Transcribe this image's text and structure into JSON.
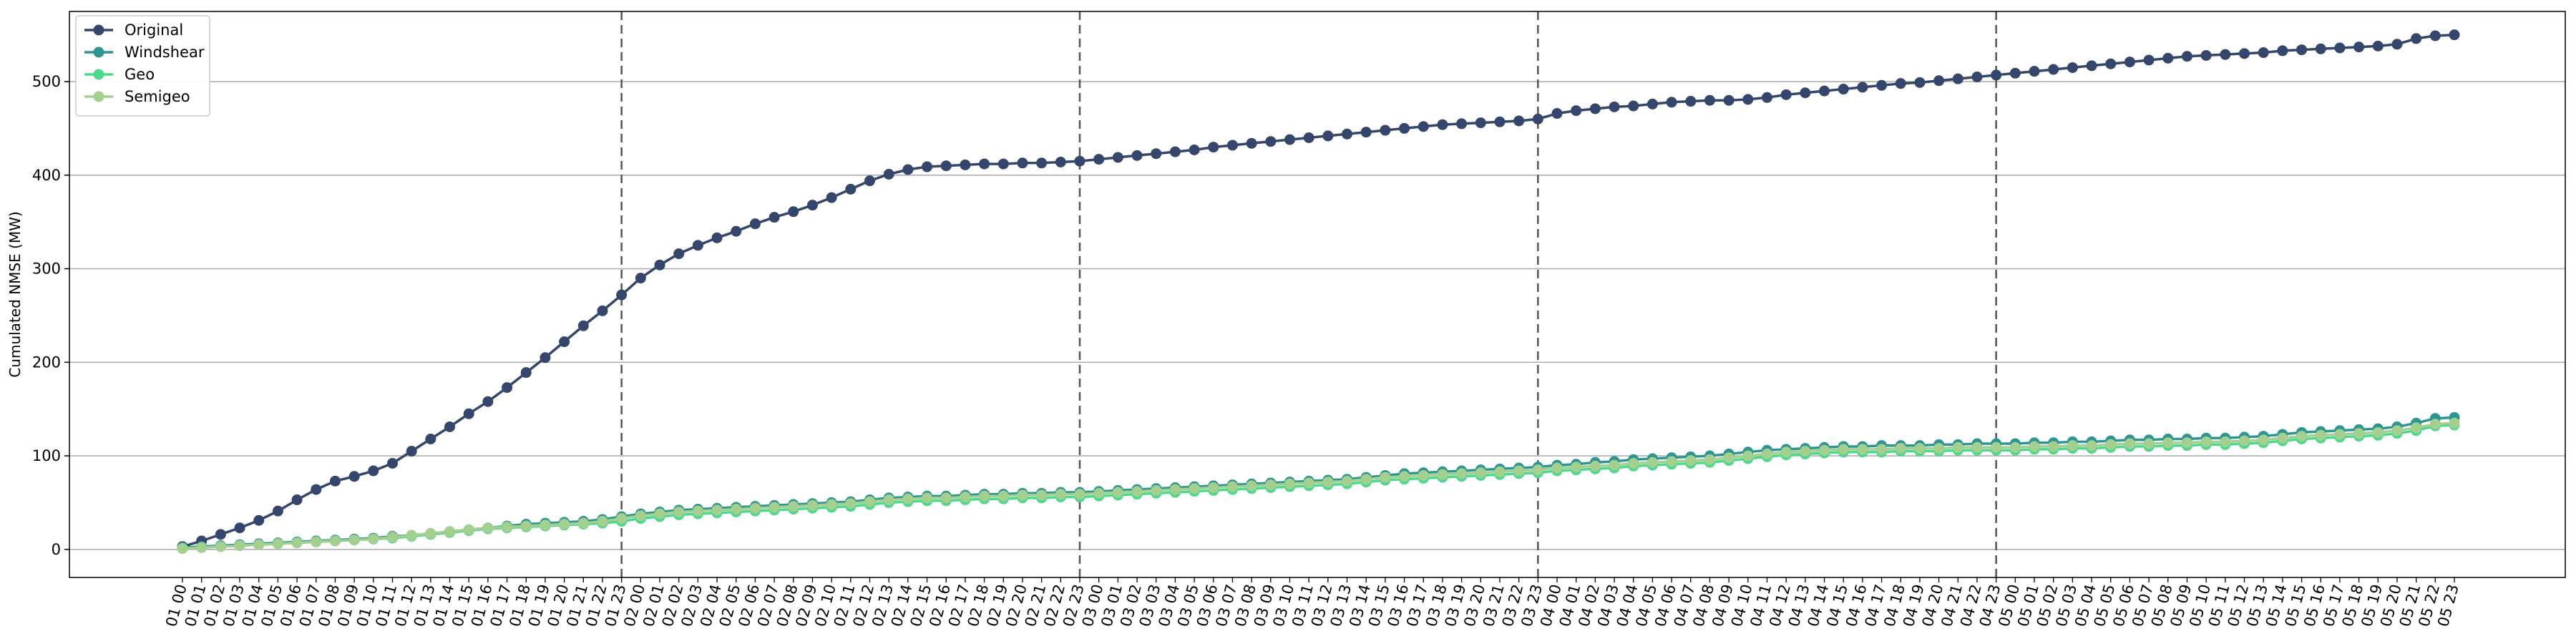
{
  "chart_data": {
    "type": "line",
    "title": "",
    "xlabel": "",
    "ylabel": "Cumulated NMSE (MW)",
    "ylim": [
      -30,
      575
    ],
    "yticks": [
      0,
      100,
      200,
      300,
      400,
      500
    ],
    "grid": "horizontal",
    "legend_position": "top-left",
    "day_separators_after": [
      "01 23",
      "02 23",
      "03 23",
      "04 23"
    ],
    "categories": [
      "01 00",
      "01 01",
      "01 02",
      "01 03",
      "01 04",
      "01 05",
      "01 06",
      "01 07",
      "01 08",
      "01 09",
      "01 10",
      "01 11",
      "01 12",
      "01 13",
      "01 14",
      "01 15",
      "01 16",
      "01 17",
      "01 18",
      "01 19",
      "01 20",
      "01 21",
      "01 22",
      "01 23",
      "02 00",
      "02 01",
      "02 02",
      "02 03",
      "02 04",
      "02 05",
      "02 06",
      "02 07",
      "02 08",
      "02 09",
      "02 10",
      "02 11",
      "02 12",
      "02 13",
      "02 14",
      "02 15",
      "02 16",
      "02 17",
      "02 18",
      "02 19",
      "02 20",
      "02 21",
      "02 22",
      "02 23",
      "03 00",
      "03 01",
      "03 02",
      "03 03",
      "03 04",
      "03 05",
      "03 06",
      "03 07",
      "03 08",
      "03 09",
      "03 10",
      "03 11",
      "03 12",
      "03 13",
      "03 14",
      "03 15",
      "03 16",
      "03 17",
      "03 18",
      "03 19",
      "03 20",
      "03 21",
      "03 22",
      "03 23",
      "04 00",
      "04 01",
      "04 02",
      "04 03",
      "04 04",
      "04 05",
      "04 06",
      "04 07",
      "04 08",
      "04 09",
      "04 10",
      "04 11",
      "04 12",
      "04 13",
      "04 14",
      "04 15",
      "04 16",
      "04 17",
      "04 18",
      "04 19",
      "04 20",
      "04 21",
      "04 22",
      "04 23",
      "05 00",
      "05 01",
      "05 02",
      "05 03",
      "05 04",
      "05 05",
      "05 06",
      "05 07",
      "05 08",
      "05 09",
      "05 10",
      "05 11",
      "05 12",
      "05 13",
      "05 14",
      "05 15",
      "05 16",
      "05 17",
      "05 18",
      "05 19",
      "05 20",
      "05 21",
      "05 22",
      "05 23"
    ],
    "series": [
      {
        "name": "Original",
        "color": "#34466b",
        "values": [
          3,
          9,
          16,
          23,
          31,
          41,
          53,
          64,
          73,
          78,
          84,
          92,
          105,
          118,
          131,
          145,
          158,
          173,
          189,
          205,
          222,
          239,
          255,
          272,
          290,
          304,
          316,
          325,
          333,
          340,
          348,
          355,
          361,
          368,
          376,
          385,
          394,
          401,
          406,
          409,
          410,
          411,
          412,
          412,
          413,
          413,
          414,
          415,
          417,
          419,
          421,
          423,
          425,
          427,
          430,
          432,
          434,
          436,
          438,
          440,
          442,
          444,
          446,
          448,
          450,
          452,
          454,
          455,
          456,
          457,
          458,
          460,
          466,
          469,
          471,
          473,
          474,
          476,
          478,
          479,
          480,
          480,
          481,
          483,
          486,
          488,
          490,
          492,
          494,
          496,
          498,
          499,
          501,
          503,
          505,
          507,
          509,
          511,
          513,
          515,
          517,
          519,
          521,
          523,
          525,
          527,
          528,
          529,
          530,
          531,
          533,
          534,
          535,
          536,
          537,
          538,
          540,
          546,
          549,
          550
        ]
      },
      {
        "name": "Windshear",
        "color": "#2e9692",
        "values": [
          2,
          3,
          4,
          5,
          6,
          7,
          8,
          9,
          10,
          11,
          12,
          14,
          15,
          17,
          19,
          21,
          23,
          25,
          27,
          28,
          29,
          30,
          32,
          35,
          38,
          40,
          42,
          43,
          44,
          45,
          46,
          47,
          48,
          49,
          50,
          51,
          53,
          55,
          56,
          57,
          57,
          58,
          59,
          59,
          60,
          60,
          61,
          61,
          62,
          63,
          64,
          65,
          66,
          67,
          68,
          69,
          70,
          71,
          72,
          73,
          74,
          75,
          77,
          79,
          81,
          82,
          83,
          84,
          85,
          86,
          87,
          88,
          90,
          91,
          93,
          94,
          96,
          97,
          98,
          99,
          100,
          102,
          104,
          106,
          107,
          108,
          109,
          110,
          110,
          111,
          111,
          111,
          112,
          112,
          113,
          113,
          113,
          114,
          114,
          115,
          115,
          116,
          117,
          117,
          118,
          118,
          119,
          119,
          120,
          121,
          123,
          125,
          126,
          127,
          128,
          129,
          131,
          135,
          140,
          141
        ]
      },
      {
        "name": "Geo",
        "color": "#4dd98c",
        "values": [
          1,
          2,
          3,
          4,
          5,
          6,
          7,
          8,
          9,
          10,
          11,
          12,
          14,
          16,
          18,
          20,
          22,
          23,
          24,
          25,
          26,
          27,
          28,
          30,
          33,
          35,
          37,
          38,
          39,
          40,
          41,
          42,
          43,
          44,
          45,
          46,
          48,
          50,
          51,
          52,
          52,
          53,
          54,
          54,
          55,
          55,
          56,
          56,
          57,
          58,
          59,
          60,
          61,
          62,
          63,
          64,
          65,
          66,
          67,
          68,
          69,
          70,
          72,
          74,
          75,
          76,
          77,
          78,
          79,
          80,
          81,
          82,
          84,
          85,
          86,
          87,
          89,
          90,
          91,
          92,
          93,
          95,
          97,
          99,
          101,
          102,
          103,
          104,
          104,
          104,
          105,
          105,
          105,
          106,
          106,
          106,
          106,
          107,
          107,
          108,
          108,
          109,
          110,
          110,
          111,
          111,
          112,
          112,
          113,
          114,
          116,
          118,
          119,
          120,
          121,
          122,
          124,
          127,
          132,
          133
        ]
      },
      {
        "name": "Semigeo",
        "color": "#a3cf8f",
        "values": [
          1,
          2,
          3,
          4,
          5,
          6,
          7,
          8,
          9,
          10,
          11,
          13,
          15,
          17,
          19,
          21,
          23,
          24,
          25,
          26,
          27,
          28,
          30,
          33,
          36,
          38,
          40,
          41,
          42,
          43,
          44,
          45,
          46,
          47,
          48,
          49,
          51,
          53,
          54,
          55,
          55,
          56,
          57,
          57,
          58,
          58,
          59,
          59,
          60,
          61,
          62,
          63,
          64,
          65,
          66,
          67,
          68,
          69,
          70,
          71,
          72,
          73,
          75,
          77,
          78,
          79,
          80,
          81,
          82,
          83,
          84,
          85,
          87,
          88,
          89,
          90,
          92,
          93,
          94,
          95,
          96,
          98,
          100,
          102,
          104,
          105,
          106,
          107,
          107,
          107,
          108,
          108,
          108,
          109,
          109,
          109,
          109,
          110,
          110,
          111,
          111,
          112,
          113,
          113,
          114,
          114,
          115,
          115,
          116,
          117,
          119,
          121,
          122,
          123,
          124,
          125,
          127,
          130,
          134,
          135
        ]
      }
    ]
  }
}
